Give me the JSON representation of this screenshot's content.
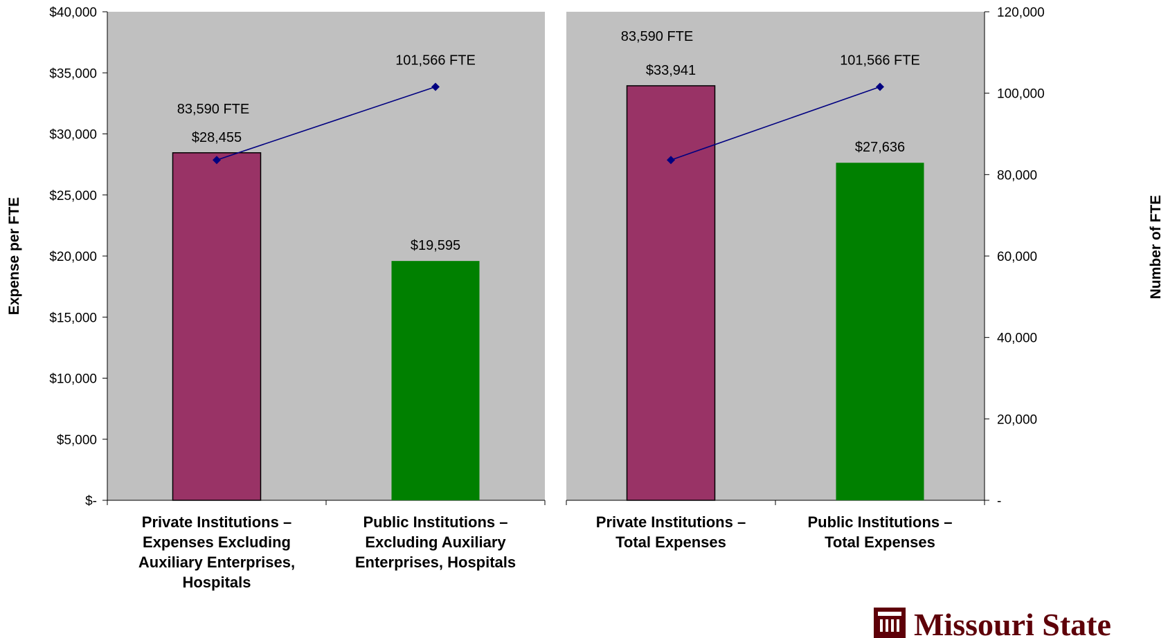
{
  "chart_data": {
    "type": "bar",
    "ylabel": "Expense per FTE",
    "y2label": "Number of  FTE",
    "ylim": [
      0,
      40000
    ],
    "y2lim": [
      0,
      120000
    ],
    "y_ticks": [
      0,
      5000,
      10000,
      15000,
      20000,
      25000,
      30000,
      35000,
      40000
    ],
    "y_tick_labels": [
      "$-",
      "$5,000",
      "$10,000",
      "$15,000",
      "$20,000",
      "$25,000",
      "$30,000",
      "$35,000",
      "$40,000"
    ],
    "y2_ticks": [
      0,
      20000,
      40000,
      60000,
      80000,
      100000,
      120000
    ],
    "y2_tick_labels": [
      "-",
      "20,000",
      "40,000",
      "60,000",
      "80,000",
      "100,000",
      "120,000"
    ],
    "grid": false,
    "background": "#C0C0C0",
    "panels": [
      {
        "categories": [
          [
            "Private Institutions –",
            "Expenses Excluding",
            "Auxiliary Enterprises,",
            "Hospitals"
          ],
          [
            "Public Institutions –",
            "Excluding Auxiliary",
            "Enterprises, Hospitals"
          ]
        ],
        "bars": [
          {
            "value": 28455,
            "label": "$28,455",
            "color": "#993366"
          },
          {
            "value": 19595,
            "label": "$19,595",
            "color": "#008000"
          }
        ],
        "fte": [
          {
            "value": 83590,
            "label": "83,590  FTE"
          },
          {
            "value": 101566,
            "label": "101,566 FTE"
          }
        ]
      },
      {
        "categories": [
          [
            "Private Institutions –",
            "Total Expenses"
          ],
          [
            "Public Institutions –",
            "Total Expenses"
          ]
        ],
        "bars": [
          {
            "value": 33941,
            "label": "$33,941",
            "color": "#993366"
          },
          {
            "value": 27636,
            "label": "$27,636",
            "color": "#008000"
          }
        ],
        "fte": [
          {
            "value": 83590,
            "label": "83,590 FTE"
          },
          {
            "value": 101566,
            "label": "101,566 FTE"
          }
        ]
      }
    ],
    "line_color": "#000080"
  },
  "logo": {
    "text": "Missouri State",
    "color": "#5E0009"
  }
}
